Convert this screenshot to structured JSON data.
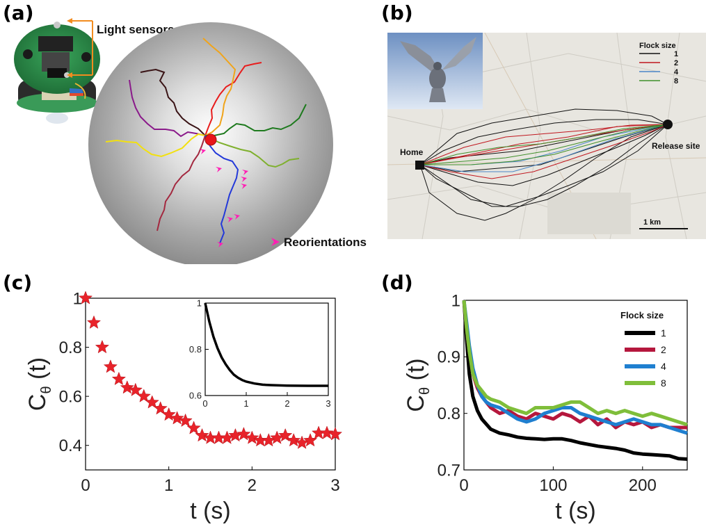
{
  "panels": {
    "a": {
      "letter": "(a)",
      "sensor_label": "Light sensors",
      "reorient_label": "Reorientations",
      "colors": {
        "marker": "#ff1fb4",
        "center": "#e8161b"
      }
    },
    "b": {
      "letter": "(b)",
      "home_label": "Home",
      "release_label": "Release site",
      "scale_label": "1 km",
      "legend_title": "Flock size",
      "legend": [
        {
          "label": "1",
          "color": "#111111"
        },
        {
          "label": "2",
          "color": "#c0161e"
        },
        {
          "label": "4",
          "color": "#4a86c8"
        },
        {
          "label": "8",
          "color": "#3f8f2a"
        }
      ]
    },
    "c": {
      "letter": "(c)"
    },
    "d": {
      "letter": "(d)"
    }
  },
  "chart_data": [
    {
      "id": "c-main",
      "type": "scatter",
      "marker": "star",
      "color": "#e8232a",
      "xlabel": "t (s)",
      "ylabel": "C",
      "ylabel_sub": "θ",
      "ylabel_suffix": " (t)",
      "xlim": [
        0,
        3
      ],
      "ylim": [
        0.3,
        1.0
      ],
      "xticks": [
        "0",
        "1",
        "2",
        "3"
      ],
      "yticks": [
        "0.4",
        "0.6",
        "0.8",
        "1"
      ],
      "x": [
        0.0,
        0.1,
        0.2,
        0.3,
        0.4,
        0.5,
        0.6,
        0.7,
        0.8,
        0.9,
        1.0,
        1.1,
        1.2,
        1.3,
        1.4,
        1.5,
        1.6,
        1.7,
        1.8,
        1.9,
        2.0,
        2.1,
        2.2,
        2.3,
        2.4,
        2.5,
        2.6,
        2.7,
        2.8,
        2.9,
        3.0
      ],
      "y": [
        1.0,
        0.9,
        0.8,
        0.72,
        0.67,
        0.635,
        0.625,
        0.6,
        0.575,
        0.55,
        0.525,
        0.51,
        0.5,
        0.47,
        0.44,
        0.43,
        0.43,
        0.43,
        0.44,
        0.445,
        0.43,
        0.42,
        0.42,
        0.43,
        0.44,
        0.42,
        0.41,
        0.42,
        0.45,
        0.45,
        0.445
      ]
    },
    {
      "id": "c-inset",
      "type": "line",
      "color": "#000000",
      "xlim": [
        0,
        3
      ],
      "ylim": [
        0.6,
        1.0
      ],
      "xticks": [
        "0",
        "1",
        "2",
        "3"
      ],
      "yticks": [
        "0.6",
        "0.8",
        "1"
      ],
      "x": [
        0,
        0.1,
        0.2,
        0.3,
        0.4,
        0.5,
        0.6,
        0.7,
        0.8,
        0.9,
        1.0,
        1.2,
        1.4,
        1.6,
        1.8,
        2.0,
        2.5,
        3.0
      ],
      "y": [
        1.0,
        0.92,
        0.855,
        0.805,
        0.765,
        0.735,
        0.71,
        0.69,
        0.677,
        0.667,
        0.66,
        0.652,
        0.647,
        0.645,
        0.644,
        0.643,
        0.642,
        0.642
      ]
    },
    {
      "id": "d-main",
      "type": "line",
      "xlabel": "t (s)",
      "ylabel": "C",
      "ylabel_sub": "θ",
      "ylabel_suffix": " (t)",
      "xlim": [
        0,
        250
      ],
      "ylim": [
        0.7,
        1.0
      ],
      "xticks": [
        "0",
        "100",
        "200"
      ],
      "yticks": [
        "0.7",
        "0.8",
        "0.9",
        "1"
      ],
      "legend_title": "Flock size",
      "series": [
        {
          "name": "1",
          "color": "#000000",
          "x": [
            0,
            3,
            6,
            10,
            15,
            20,
            30,
            40,
            50,
            60,
            70,
            80,
            90,
            100,
            110,
            120,
            130,
            140,
            150,
            160,
            170,
            180,
            190,
            200,
            210,
            220,
            230,
            240,
            250
          ],
          "y": [
            1.0,
            0.93,
            0.87,
            0.83,
            0.805,
            0.79,
            0.772,
            0.765,
            0.762,
            0.758,
            0.756,
            0.755,
            0.754,
            0.755,
            0.755,
            0.752,
            0.748,
            0.745,
            0.742,
            0.74,
            0.738,
            0.735,
            0.73,
            0.728,
            0.727,
            0.726,
            0.725,
            0.72,
            0.719
          ]
        },
        {
          "name": "2",
          "color": "#b5173d",
          "x": [
            0,
            3,
            6,
            10,
            15,
            20,
            25,
            30,
            40,
            50,
            60,
            70,
            80,
            90,
            100,
            110,
            120,
            130,
            140,
            150,
            160,
            170,
            180,
            190,
            200,
            210,
            220,
            230,
            240,
            250
          ],
          "y": [
            1.0,
            0.95,
            0.91,
            0.87,
            0.845,
            0.83,
            0.82,
            0.81,
            0.8,
            0.805,
            0.795,
            0.79,
            0.8,
            0.795,
            0.79,
            0.8,
            0.795,
            0.785,
            0.795,
            0.78,
            0.79,
            0.775,
            0.785,
            0.78,
            0.785,
            0.775,
            0.78,
            0.775,
            0.775,
            0.775
          ]
        },
        {
          "name": "4",
          "color": "#1f7fd0",
          "x": [
            0,
            3,
            6,
            10,
            15,
            20,
            25,
            30,
            40,
            50,
            60,
            70,
            80,
            90,
            100,
            110,
            120,
            130,
            140,
            150,
            160,
            170,
            180,
            190,
            200,
            210,
            220,
            230,
            240,
            250
          ],
          "y": [
            1.0,
            0.96,
            0.92,
            0.88,
            0.85,
            0.83,
            0.82,
            0.815,
            0.81,
            0.8,
            0.79,
            0.785,
            0.79,
            0.8,
            0.805,
            0.81,
            0.81,
            0.8,
            0.795,
            0.79,
            0.785,
            0.78,
            0.785,
            0.79,
            0.785,
            0.78,
            0.78,
            0.775,
            0.77,
            0.765
          ]
        },
        {
          "name": "8",
          "color": "#7fbe3a",
          "x": [
            0,
            3,
            6,
            10,
            15,
            20,
            25,
            30,
            40,
            50,
            60,
            70,
            80,
            90,
            100,
            110,
            120,
            130,
            140,
            150,
            160,
            170,
            180,
            190,
            200,
            210,
            220,
            230,
            240,
            250
          ],
          "y": [
            1.0,
            0.95,
            0.91,
            0.87,
            0.85,
            0.84,
            0.83,
            0.825,
            0.82,
            0.81,
            0.805,
            0.8,
            0.81,
            0.81,
            0.81,
            0.815,
            0.82,
            0.82,
            0.81,
            0.8,
            0.805,
            0.8,
            0.805,
            0.8,
            0.795,
            0.8,
            0.795,
            0.79,
            0.785,
            0.78
          ]
        }
      ]
    }
  ]
}
